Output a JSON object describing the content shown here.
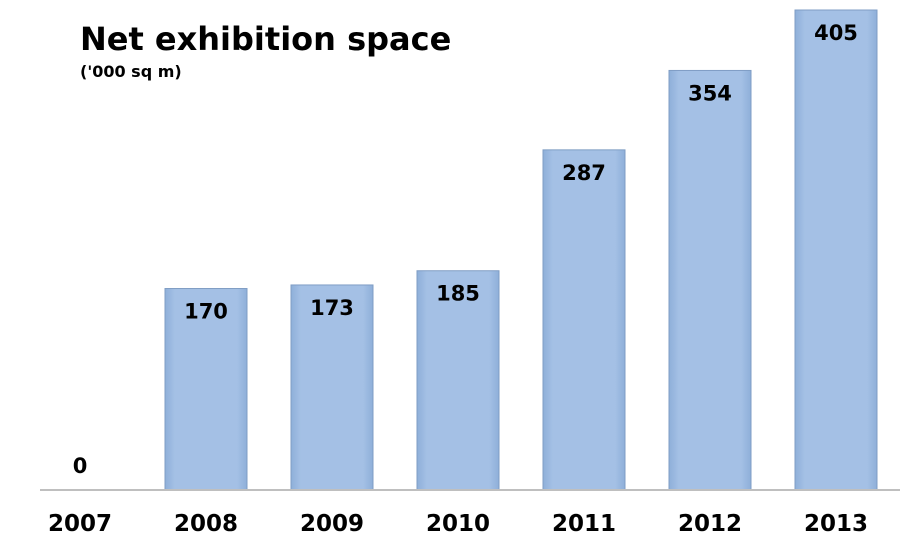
{
  "chart_data": {
    "type": "bar",
    "title": "Net exhibition space",
    "subtitle": "('000 sq m)",
    "categories": [
      "2007",
      "2008",
      "2009",
      "2010",
      "2011",
      "2012",
      "2013"
    ],
    "values": [
      0,
      170,
      173,
      185,
      287,
      354,
      405
    ],
    "xlabel": "",
    "ylabel": "",
    "ylim": [
      0,
      420
    ],
    "grid": false,
    "legend": "none",
    "bar_color": "#9dbbe2",
    "bar_edge_color": "#7f9dc4",
    "axis_color": "#bfbfbf"
  }
}
